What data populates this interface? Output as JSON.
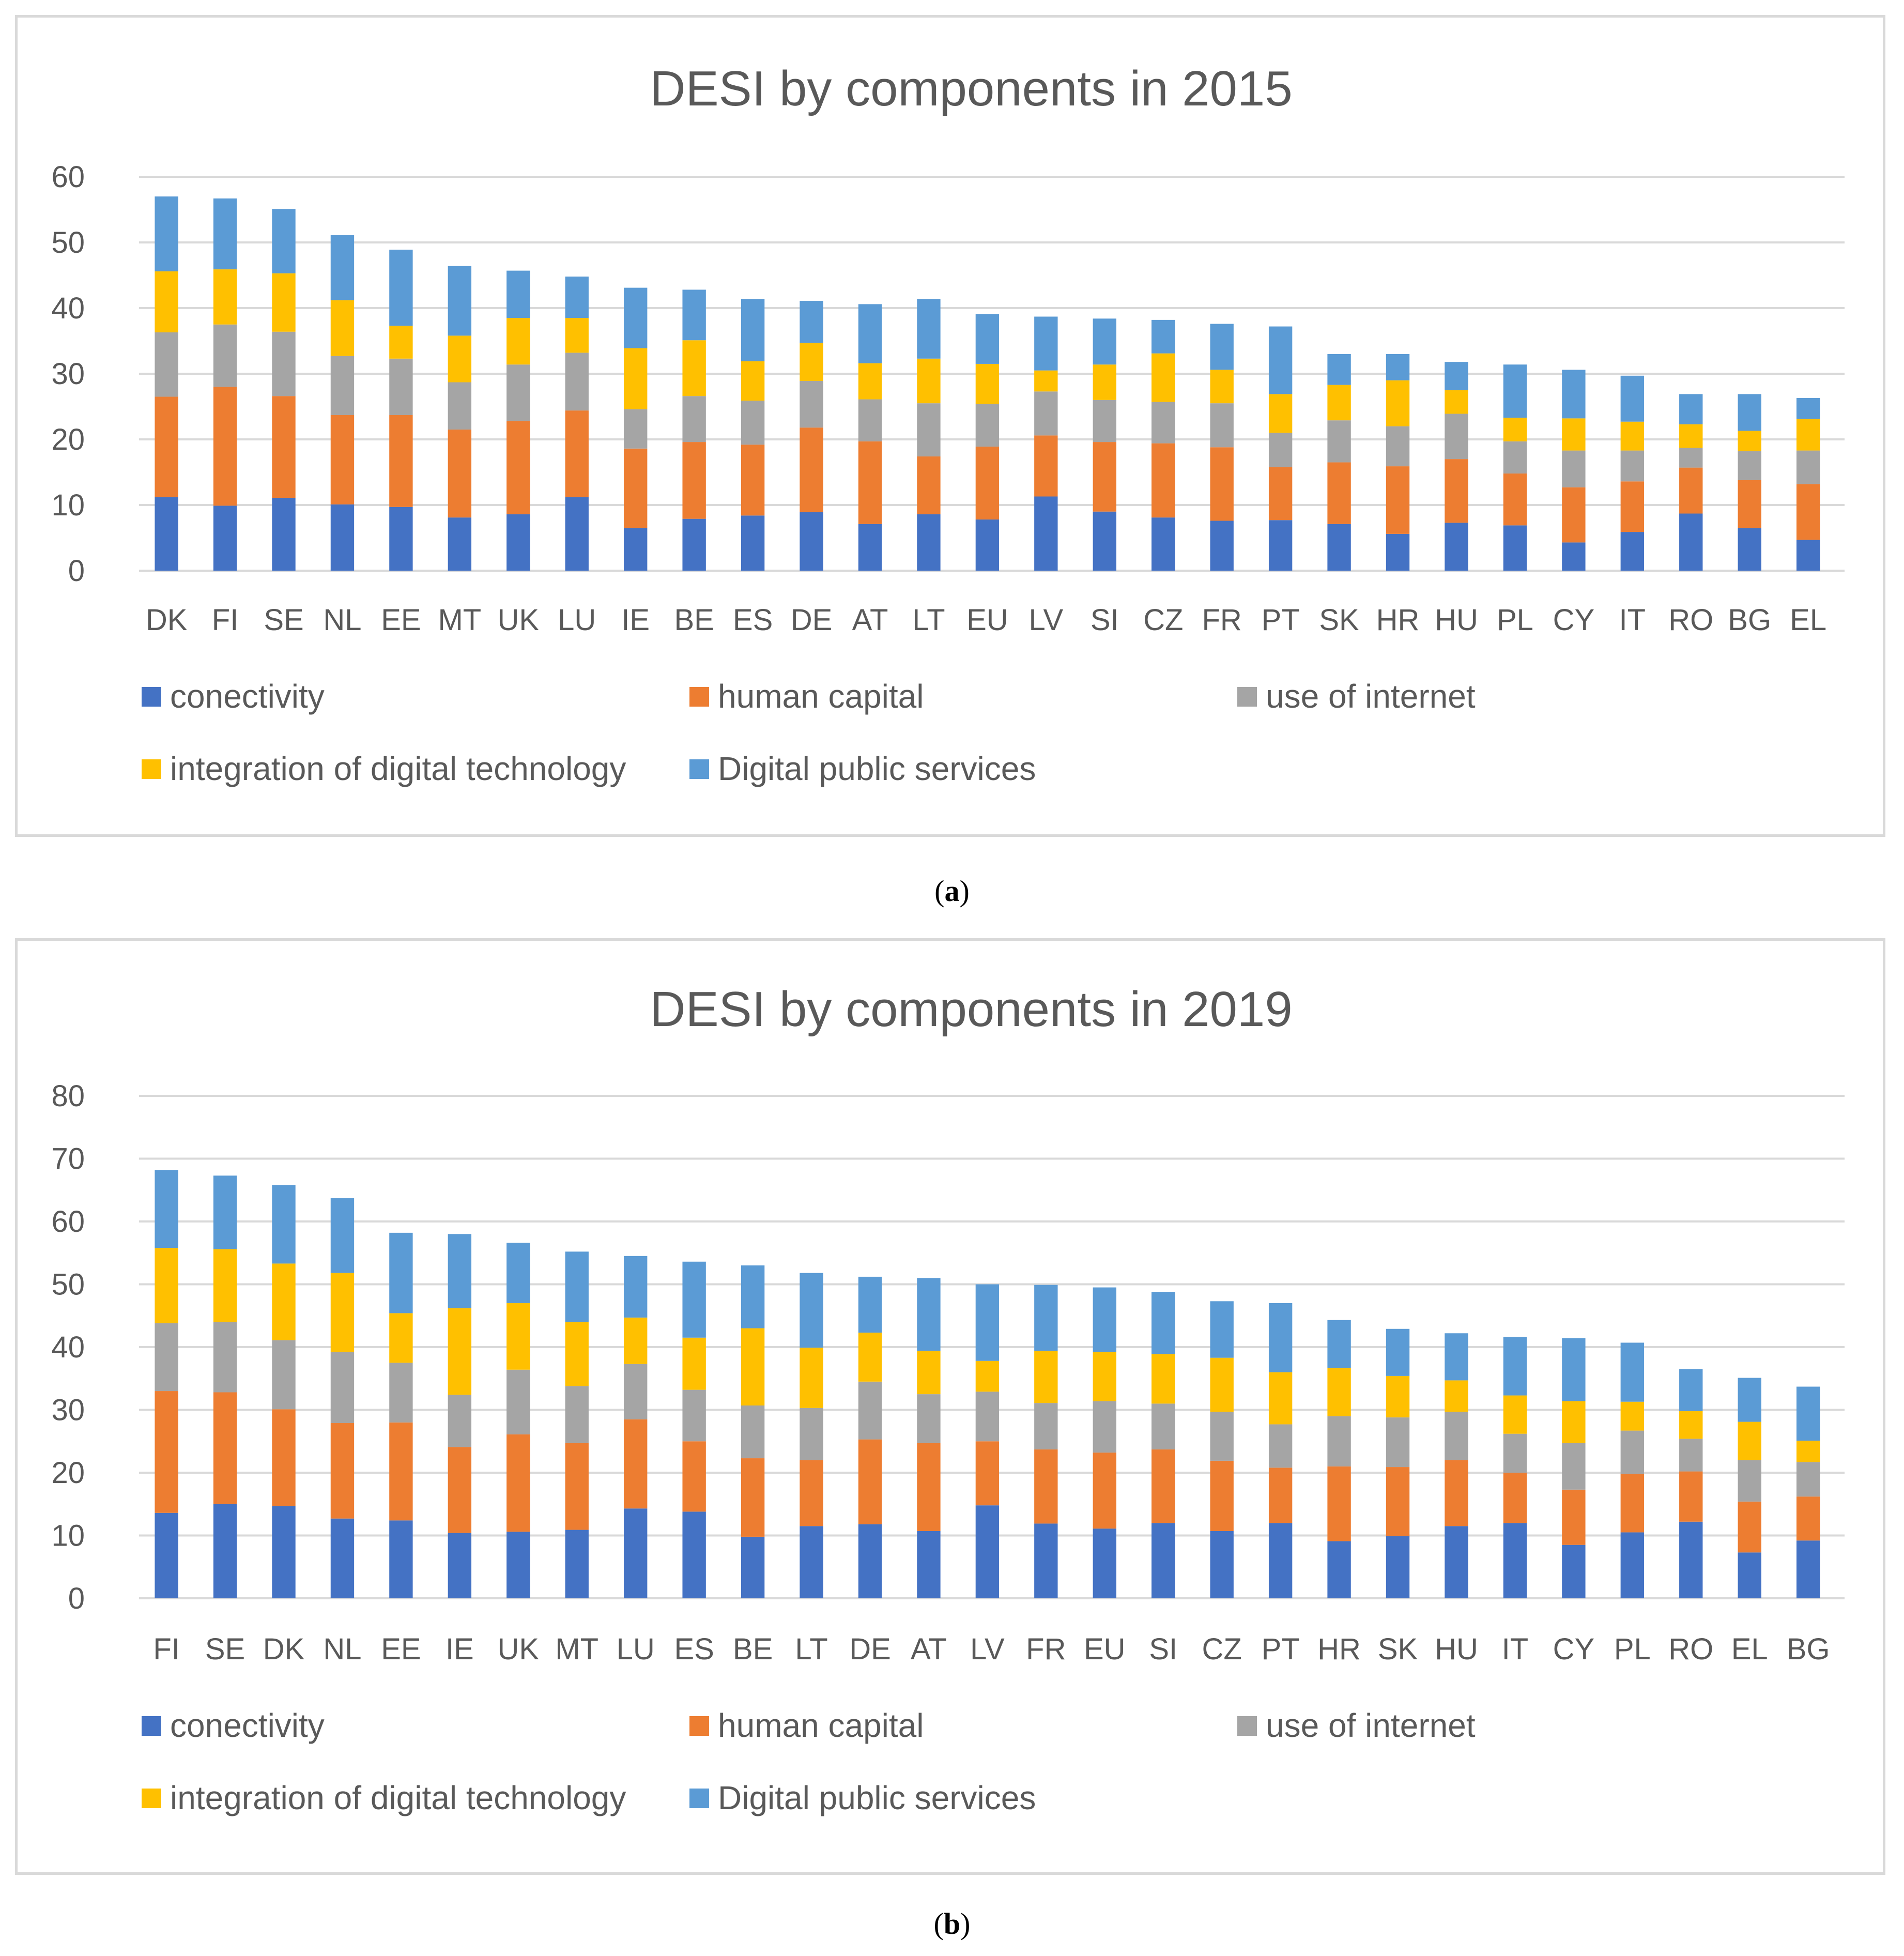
{
  "colors": {
    "conectivity": "#4472c4",
    "human_capital": "#ed7d31",
    "use_of_internet": "#a5a5a5",
    "integration": "#ffc000",
    "public_services": "#5b9bd5",
    "grid": "#d9d9d9",
    "text": "#595959"
  },
  "captions": {
    "a": "a",
    "b": "b"
  },
  "chart_data": [
    {
      "type": "bar",
      "stacked": true,
      "title": "DESI by components in 2015",
      "xlabel": "",
      "ylabel": "",
      "ylim": [
        0,
        60
      ],
      "yticks": [
        0,
        10,
        20,
        30,
        40,
        50,
        60
      ],
      "grid": true,
      "legend_position": "bottom",
      "categories": [
        "DK",
        "FI",
        "SE",
        "NL",
        "EE",
        "MT",
        "UK",
        "LU",
        "IE",
        "BE",
        "ES",
        "DE",
        "AT",
        "LT",
        "EU",
        "LV",
        "SI",
        "CZ",
        "FR",
        "PT",
        "SK",
        "HR",
        "HU",
        "PL",
        "CY",
        "IT",
        "RO",
        "BG",
        "EL"
      ],
      "series": [
        {
          "name": "conectivity",
          "color_key": "conectivity",
          "values": [
            11.2,
            9.9,
            11.1,
            10.1,
            9.7,
            8.1,
            8.6,
            11.2,
            6.5,
            7.9,
            8.4,
            8.9,
            7.1,
            8.6,
            7.8,
            11.3,
            9.0,
            8.1,
            7.6,
            7.7,
            7.1,
            5.6,
            7.3,
            6.9,
            4.3,
            5.9,
            8.7,
            6.5,
            4.7
          ]
        },
        {
          "name": "human capital",
          "color_key": "human_capital",
          "values": [
            15.3,
            18.1,
            15.5,
            13.6,
            14.0,
            13.4,
            14.2,
            13.2,
            12.1,
            11.7,
            10.8,
            12.9,
            12.6,
            8.8,
            11.1,
            9.3,
            10.6,
            11.3,
            11.2,
            8.1,
            9.4,
            10.3,
            9.7,
            7.9,
            8.4,
            7.7,
            7.0,
            7.3,
            8.5
          ]
        },
        {
          "name": "use of internet",
          "color_key": "use_of_internet",
          "values": [
            9.8,
            9.5,
            9.8,
            9.0,
            8.6,
            7.2,
            8.6,
            8.8,
            6.0,
            7.0,
            6.7,
            7.1,
            6.4,
            8.1,
            6.5,
            6.7,
            6.4,
            6.3,
            6.7,
            5.2,
            6.4,
            6.1,
            6.9,
            4.9,
            5.6,
            4.7,
            3.0,
            4.4,
            5.1
          ]
        },
        {
          "name": "integration of digital technology",
          "color_key": "integration",
          "values": [
            9.3,
            8.4,
            8.9,
            8.5,
            5.0,
            7.1,
            7.1,
            5.3,
            9.3,
            8.5,
            6.0,
            5.8,
            5.5,
            6.8,
            6.1,
            3.2,
            5.4,
            7.4,
            5.1,
            5.9,
            5.4,
            7.0,
            3.6,
            3.6,
            4.9,
            4.4,
            3.6,
            3.1,
            4.8
          ]
        },
        {
          "name": "Digital public services",
          "color_key": "public_services",
          "values": [
            11.4,
            10.8,
            9.8,
            9.9,
            11.6,
            10.6,
            7.2,
            6.3,
            9.2,
            7.7,
            9.5,
            6.4,
            9.0,
            9.1,
            7.6,
            8.2,
            7.0,
            5.1,
            7.0,
            10.3,
            4.7,
            4.0,
            4.3,
            8.1,
            7.4,
            7.0,
            4.6,
            5.6,
            3.2
          ]
        }
      ]
    },
    {
      "type": "bar",
      "stacked": true,
      "title": "DESI by components in 2019",
      "xlabel": "",
      "ylabel": "",
      "ylim": [
        0,
        80
      ],
      "yticks": [
        0,
        10,
        20,
        30,
        40,
        50,
        60,
        70,
        80
      ],
      "grid": true,
      "legend_position": "bottom",
      "categories": [
        "FI",
        "SE",
        "DK",
        "NL",
        "EE",
        "IE",
        "UK",
        "MT",
        "LU",
        "ES",
        "BE",
        "LT",
        "DE",
        "AT",
        "LV",
        "FR",
        "EU",
        "SI",
        "CZ",
        "PT",
        "HR",
        "SK",
        "HU",
        "IT",
        "CY",
        "PL",
        "RO",
        "EL",
        "BG"
      ],
      "series": [
        {
          "name": "conectivity",
          "color_key": "conectivity",
          "values": [
            13.6,
            15.0,
            14.7,
            12.7,
            12.4,
            10.4,
            10.6,
            10.9,
            14.3,
            13.8,
            9.8,
            11.5,
            11.8,
            10.7,
            14.8,
            11.9,
            11.1,
            12.0,
            10.7,
            12.0,
            9.1,
            9.9,
            11.5,
            12.0,
            8.5,
            10.5,
            12.2,
            7.3,
            9.2
          ]
        },
        {
          "name": "human capital",
          "color_key": "human_capital",
          "values": [
            19.4,
            17.8,
            15.4,
            15.2,
            15.6,
            13.7,
            15.5,
            13.8,
            14.2,
            11.2,
            12.5,
            10.5,
            13.5,
            14.0,
            10.2,
            11.8,
            12.1,
            11.7,
            11.2,
            8.8,
            11.9,
            11.0,
            10.5,
            8.0,
            8.8,
            9.3,
            8.0,
            8.1,
            7.0
          ]
        },
        {
          "name": "use of internet",
          "color_key": "use_of_internet",
          "values": [
            10.8,
            11.2,
            11.0,
            11.3,
            9.5,
            8.3,
            10.3,
            9.1,
            8.8,
            8.2,
            8.4,
            8.3,
            9.2,
            7.8,
            7.9,
            7.4,
            8.2,
            7.3,
            7.8,
            6.9,
            8.0,
            7.9,
            7.7,
            6.2,
            7.4,
            6.9,
            5.2,
            6.6,
            5.5
          ]
        },
        {
          "name": "integration of digital technology",
          "color_key": "integration",
          "values": [
            12.0,
            11.6,
            12.2,
            12.6,
            7.9,
            13.8,
            10.6,
            10.2,
            7.4,
            8.3,
            12.3,
            9.6,
            7.8,
            6.9,
            4.9,
            8.3,
            7.8,
            7.9,
            8.6,
            8.3,
            7.7,
            6.6,
            5.0,
            6.1,
            6.7,
            4.6,
            4.4,
            6.1,
            3.4
          ]
        },
        {
          "name": "Digital public services",
          "color_key": "public_services",
          "values": [
            12.4,
            11.7,
            12.5,
            11.9,
            12.8,
            11.8,
            9.6,
            11.2,
            9.8,
            12.1,
            10.0,
            11.9,
            8.9,
            11.6,
            12.2,
            10.5,
            10.3,
            9.9,
            9.0,
            11.0,
            7.6,
            7.5,
            7.5,
            9.3,
            10.0,
            9.4,
            6.7,
            7.0,
            8.6
          ]
        }
      ]
    }
  ]
}
